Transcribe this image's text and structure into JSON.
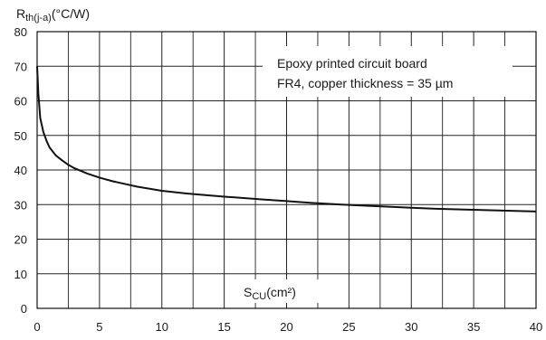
{
  "chart_data": {
    "type": "line",
    "y_axis_label": {
      "main": "R",
      "subscript": "th(j-a)",
      "unit": "(°C/W)"
    },
    "x_axis_label": {
      "main": "S",
      "subscript": "CU",
      "unit": "(cm²)"
    },
    "annotation": [
      "Epoxy printed circuit board",
      "FR4, copper thickness = 35 µm"
    ],
    "xlim": [
      0,
      40
    ],
    "ylim": [
      0,
      80
    ],
    "x_ticks": [
      0,
      5,
      10,
      15,
      20,
      25,
      30,
      35,
      40
    ],
    "y_ticks": [
      0,
      10,
      20,
      30,
      40,
      50,
      60,
      70,
      80
    ],
    "x_minor_step": 2.5,
    "grid": true,
    "series": [
      {
        "x": [
          0,
          0.1,
          0.25,
          0.5,
          0.75,
          1,
          1.5,
          2,
          2.5,
          3,
          4,
          5,
          6,
          7,
          8,
          10,
          12,
          15,
          18,
          20,
          22,
          25,
          28,
          30,
          32,
          35,
          38,
          40
        ],
        "y": [
          70,
          62,
          55,
          51,
          48.5,
          46.5,
          44.2,
          42.8,
          41.5,
          40.5,
          39,
          37.8,
          36.8,
          36,
          35.2,
          34,
          33.2,
          32.3,
          31.5,
          31,
          30.5,
          29.9,
          29.4,
          29.1,
          28.8,
          28.5,
          28.2,
          28
        ]
      }
    ]
  }
}
